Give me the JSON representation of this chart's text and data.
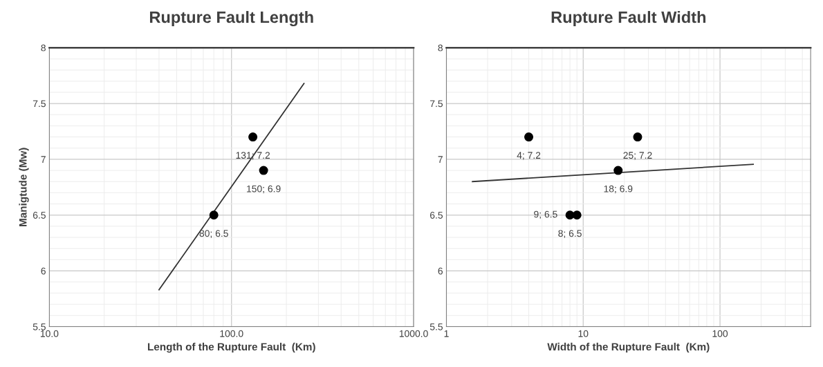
{
  "chart_data": [
    {
      "type": "scatter",
      "title": "Rupture Fault Length",
      "xlabel": "Length of the Rupture Fault  (Km)",
      "ylabel": "Manigtude (Mw)",
      "log": "x",
      "grid": true,
      "xlim": [
        10,
        1000
      ],
      "xticks": [
        {
          "value": 10,
          "label": "10.0"
        },
        {
          "value": 100,
          "label": "100.0"
        },
        {
          "value": 1000,
          "label": "1000.0"
        }
      ],
      "ylim": [
        5.5,
        8
      ],
      "yticks": [
        5.5,
        6,
        6.5,
        7,
        7.5,
        8
      ],
      "series": [
        {
          "color": "#000000",
          "marker": "circle",
          "x": [
            131,
            150,
            80
          ],
          "values": [
            7.2,
            6.9,
            6.5
          ],
          "value_labels": [
            "131; 7.2",
            "150; 6.9",
            "80; 6.5"
          ]
        },
        {
          "type": "line",
          "color": "#333333",
          "marker": "none",
          "x": [
            40,
            250
          ],
          "values": [
            5.83,
            7.68
          ]
        }
      ]
    },
    {
      "type": "scatter",
      "title": "Rupture Fault Width",
      "xlabel": "Width of the Rupture Fault  (Km)",
      "log": "x",
      "grid": true,
      "xlim": [
        1,
        460
      ],
      "xticks": [
        1,
        10,
        100
      ],
      "ylim": [
        5.5,
        8
      ],
      "yticks": [
        5.5,
        6,
        6.5,
        7,
        7.5,
        8
      ],
      "series": [
        {
          "color": "#000000",
          "marker": "circle",
          "x": [
            4,
            25,
            18,
            8,
            9
          ],
          "values": [
            7.2,
            7.2,
            6.9,
            6.5,
            6.5
          ],
          "value_labels": [
            "4; 7.2",
            "25; 7.2",
            "18; 6.9",
            "8; 6.5",
            "9; 6.5"
          ]
        },
        {
          "type": "line",
          "color": "#333333",
          "marker": "none",
          "x": [
            1.55,
            175
          ],
          "values": [
            6.8,
            6.955
          ]
        }
      ]
    }
  ]
}
